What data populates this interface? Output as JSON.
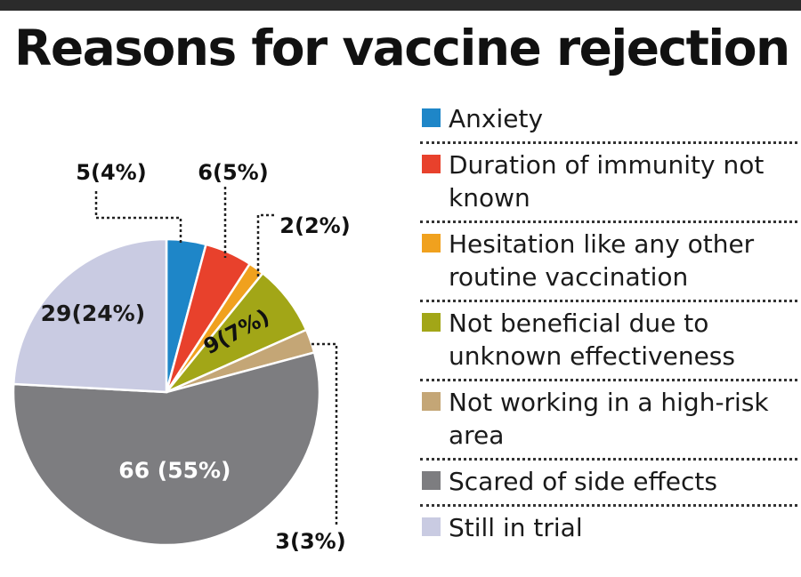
{
  "title": "Reasons for vaccine rejection",
  "chart_data": {
    "type": "pie",
    "title": "Reasons for vaccine rejection",
    "slices": [
      {
        "label": "Anxiety",
        "value": 5,
        "percent": 4,
        "display": "5(4%)",
        "color": "#1e86c8"
      },
      {
        "label": "Duration of immunity not known",
        "value": 6,
        "percent": 5,
        "display": "6(5%)",
        "color": "#e8412c"
      },
      {
        "label": "Hesitation like any other routine vaccination",
        "value": 2,
        "percent": 2,
        "display": "2(2%)",
        "color": "#f0a11e"
      },
      {
        "label": "Not beneficial due to unknown effectiveness",
        "value": 9,
        "percent": 7,
        "display": "9(7%)",
        "color": "#a2a617"
      },
      {
        "label": "Not working in a high-risk area",
        "value": 3,
        "percent": 3,
        "display": "3(3%)",
        "color": "#c4a676"
      },
      {
        "label": "Scared of side effects",
        "value": 66,
        "percent": 55,
        "display": "66 (55%)",
        "color": "#7d7d80"
      },
      {
        "label": "Still in trial",
        "value": 29,
        "percent": 24,
        "display": "29(24%)",
        "color": "#c9cbe2"
      }
    ],
    "legend_position": "right"
  }
}
